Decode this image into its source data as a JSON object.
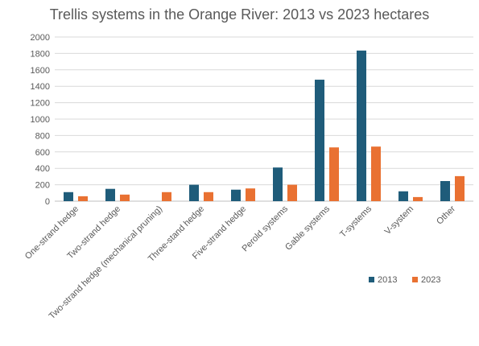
{
  "chart_data": {
    "type": "bar",
    "title": "Trellis systems in the Orange River: 2013 vs 2023 hectares",
    "xlabel": "",
    "ylabel": "",
    "ylim": [
      0,
      2000
    ],
    "yticks": [
      0,
      200,
      400,
      600,
      800,
      1000,
      1200,
      1400,
      1600,
      1800,
      2000
    ],
    "grid": true,
    "legend_position": "bottom-right",
    "categories": [
      "One-strand hedge",
      "Two-strand hedge",
      "Two-strand hedge (mechanical pruning)",
      "Three-stand hedge",
      "Five-strand hedge",
      "Perold systems",
      "Gable systems",
      "T-systems",
      "V-system",
      "Other"
    ],
    "series": [
      {
        "name": "2013",
        "color": "#1f5c7a",
        "values": [
          110,
          150,
          0,
          200,
          140,
          410,
          1480,
          1835,
          120,
          245
        ]
      },
      {
        "name": "2023",
        "color": "#e97132",
        "values": [
          60,
          80,
          110,
          110,
          155,
          200,
          655,
          665,
          50,
          305
        ]
      }
    ]
  }
}
